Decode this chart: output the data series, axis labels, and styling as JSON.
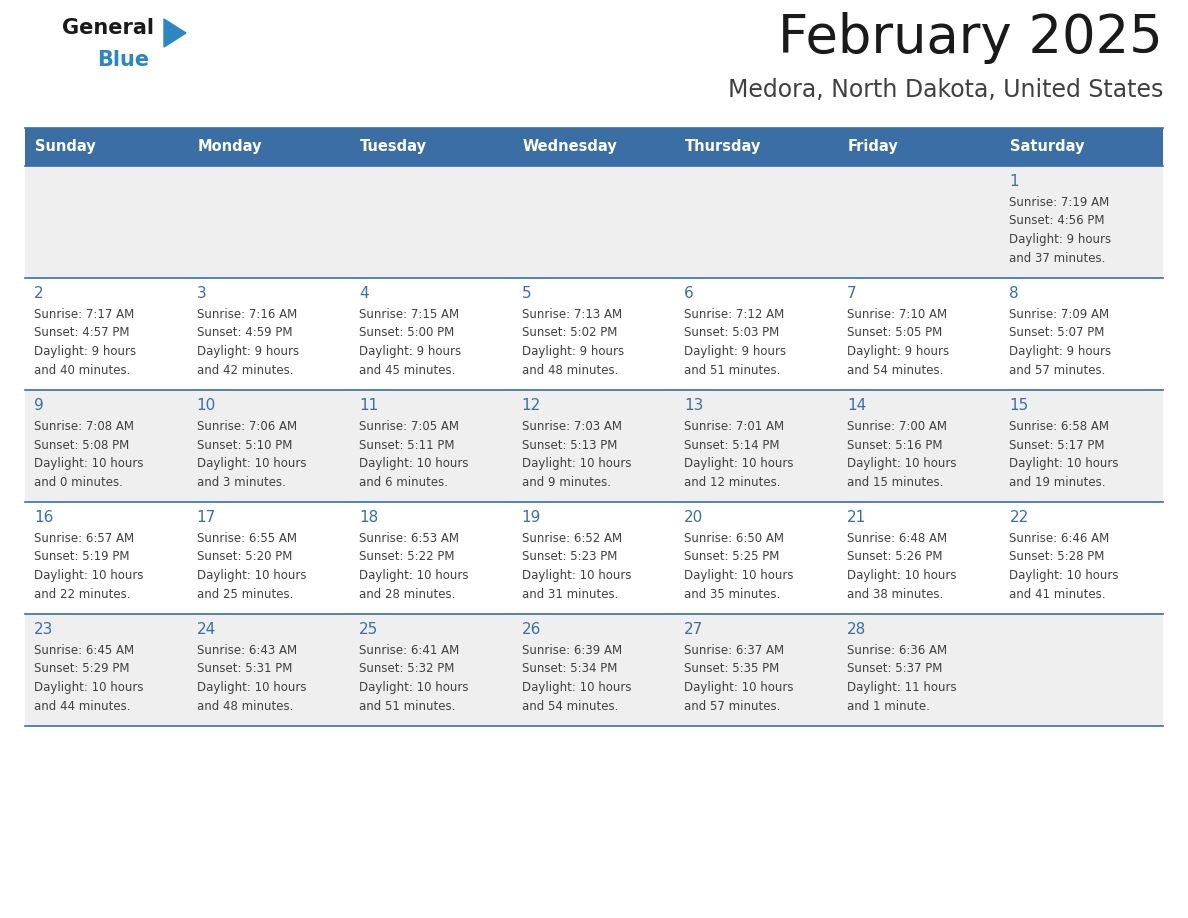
{
  "title": "February 2025",
  "subtitle": "Medora, North Dakota, United States",
  "header_bg": "#3A6EA5",
  "header_text_color": "#FFFFFF",
  "cell_bg_light": "#EFEFEF",
  "cell_bg_white": "#FFFFFF",
  "day_number_color": "#3A6EA5",
  "cell_text_color": "#404040",
  "border_color": "#3A6EA5",
  "title_color": "#1a1a1a",
  "subtitle_color": "#404040",
  "days_of_week": [
    "Sunday",
    "Monday",
    "Tuesday",
    "Wednesday",
    "Thursday",
    "Friday",
    "Saturday"
  ],
  "weeks": [
    [
      {
        "day": null,
        "info": null
      },
      {
        "day": null,
        "info": null
      },
      {
        "day": null,
        "info": null
      },
      {
        "day": null,
        "info": null
      },
      {
        "day": null,
        "info": null
      },
      {
        "day": null,
        "info": null
      },
      {
        "day": 1,
        "info": "Sunrise: 7:19 AM\nSunset: 4:56 PM\nDaylight: 9 hours\nand 37 minutes."
      }
    ],
    [
      {
        "day": 2,
        "info": "Sunrise: 7:17 AM\nSunset: 4:57 PM\nDaylight: 9 hours\nand 40 minutes."
      },
      {
        "day": 3,
        "info": "Sunrise: 7:16 AM\nSunset: 4:59 PM\nDaylight: 9 hours\nand 42 minutes."
      },
      {
        "day": 4,
        "info": "Sunrise: 7:15 AM\nSunset: 5:00 PM\nDaylight: 9 hours\nand 45 minutes."
      },
      {
        "day": 5,
        "info": "Sunrise: 7:13 AM\nSunset: 5:02 PM\nDaylight: 9 hours\nand 48 minutes."
      },
      {
        "day": 6,
        "info": "Sunrise: 7:12 AM\nSunset: 5:03 PM\nDaylight: 9 hours\nand 51 minutes."
      },
      {
        "day": 7,
        "info": "Sunrise: 7:10 AM\nSunset: 5:05 PM\nDaylight: 9 hours\nand 54 minutes."
      },
      {
        "day": 8,
        "info": "Sunrise: 7:09 AM\nSunset: 5:07 PM\nDaylight: 9 hours\nand 57 minutes."
      }
    ],
    [
      {
        "day": 9,
        "info": "Sunrise: 7:08 AM\nSunset: 5:08 PM\nDaylight: 10 hours\nand 0 minutes."
      },
      {
        "day": 10,
        "info": "Sunrise: 7:06 AM\nSunset: 5:10 PM\nDaylight: 10 hours\nand 3 minutes."
      },
      {
        "day": 11,
        "info": "Sunrise: 7:05 AM\nSunset: 5:11 PM\nDaylight: 10 hours\nand 6 minutes."
      },
      {
        "day": 12,
        "info": "Sunrise: 7:03 AM\nSunset: 5:13 PM\nDaylight: 10 hours\nand 9 minutes."
      },
      {
        "day": 13,
        "info": "Sunrise: 7:01 AM\nSunset: 5:14 PM\nDaylight: 10 hours\nand 12 minutes."
      },
      {
        "day": 14,
        "info": "Sunrise: 7:00 AM\nSunset: 5:16 PM\nDaylight: 10 hours\nand 15 minutes."
      },
      {
        "day": 15,
        "info": "Sunrise: 6:58 AM\nSunset: 5:17 PM\nDaylight: 10 hours\nand 19 minutes."
      }
    ],
    [
      {
        "day": 16,
        "info": "Sunrise: 6:57 AM\nSunset: 5:19 PM\nDaylight: 10 hours\nand 22 minutes."
      },
      {
        "day": 17,
        "info": "Sunrise: 6:55 AM\nSunset: 5:20 PM\nDaylight: 10 hours\nand 25 minutes."
      },
      {
        "day": 18,
        "info": "Sunrise: 6:53 AM\nSunset: 5:22 PM\nDaylight: 10 hours\nand 28 minutes."
      },
      {
        "day": 19,
        "info": "Sunrise: 6:52 AM\nSunset: 5:23 PM\nDaylight: 10 hours\nand 31 minutes."
      },
      {
        "day": 20,
        "info": "Sunrise: 6:50 AM\nSunset: 5:25 PM\nDaylight: 10 hours\nand 35 minutes."
      },
      {
        "day": 21,
        "info": "Sunrise: 6:48 AM\nSunset: 5:26 PM\nDaylight: 10 hours\nand 38 minutes."
      },
      {
        "day": 22,
        "info": "Sunrise: 6:46 AM\nSunset: 5:28 PM\nDaylight: 10 hours\nand 41 minutes."
      }
    ],
    [
      {
        "day": 23,
        "info": "Sunrise: 6:45 AM\nSunset: 5:29 PM\nDaylight: 10 hours\nand 44 minutes."
      },
      {
        "day": 24,
        "info": "Sunrise: 6:43 AM\nSunset: 5:31 PM\nDaylight: 10 hours\nand 48 minutes."
      },
      {
        "day": 25,
        "info": "Sunrise: 6:41 AM\nSunset: 5:32 PM\nDaylight: 10 hours\nand 51 minutes."
      },
      {
        "day": 26,
        "info": "Sunrise: 6:39 AM\nSunset: 5:34 PM\nDaylight: 10 hours\nand 54 minutes."
      },
      {
        "day": 27,
        "info": "Sunrise: 6:37 AM\nSunset: 5:35 PM\nDaylight: 10 hours\nand 57 minutes."
      },
      {
        "day": 28,
        "info": "Sunrise: 6:36 AM\nSunset: 5:37 PM\nDaylight: 11 hours\nand 1 minute."
      },
      {
        "day": null,
        "info": null
      }
    ]
  ],
  "logo_text1": "General",
  "logo_text2": "Blue",
  "logo_text1_color": "#1a1a1a",
  "logo_text2_color": "#2E86C1",
  "logo_triangle_color": "#2E86C1",
  "fig_width": 11.88,
  "fig_height": 9.18,
  "dpi": 100
}
